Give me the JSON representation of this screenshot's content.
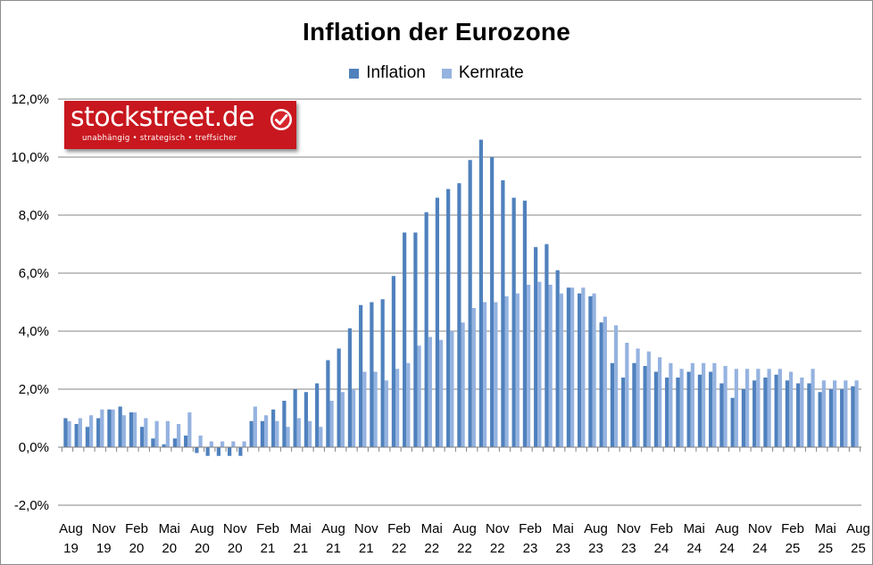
{
  "colors": {
    "inflation": "#4f81bd",
    "kernrate": "#95b3e0",
    "grid": "#868686",
    "logo_bg": "#c8171e"
  },
  "logo": {
    "text": "stockstreet.de",
    "tagline": "unabhängig • strategisch • treffsicher",
    "icon": "checkmark-badge-icon"
  },
  "chart_data": {
    "type": "bar",
    "title": "Inflation der Eurozone",
    "xlabel": "",
    "ylabel": "",
    "ylim": [
      -2,
      12
    ],
    "yticks": [
      "-2,0%",
      "0,0%",
      "2,0%",
      "4,0%",
      "6,0%",
      "8,0%",
      "10,0%",
      "12,0%"
    ],
    "grid": true,
    "legend_position": "top-center",
    "xtick_labels": [
      [
        "Aug",
        "19"
      ],
      [
        "Nov",
        "19"
      ],
      [
        "Feb",
        "20"
      ],
      [
        "Mai",
        "20"
      ],
      [
        "Aug",
        "20"
      ],
      [
        "Nov",
        "20"
      ],
      [
        "Feb",
        "21"
      ],
      [
        "Mai",
        "21"
      ],
      [
        "Aug",
        "21"
      ],
      [
        "Nov",
        "21"
      ],
      [
        "Feb",
        "22"
      ],
      [
        "Mai",
        "22"
      ],
      [
        "Aug",
        "22"
      ],
      [
        "Nov",
        "22"
      ],
      [
        "Feb",
        "23"
      ],
      [
        "Mai",
        "23"
      ],
      [
        "Aug",
        "23"
      ],
      [
        "Nov",
        "23"
      ],
      [
        "Feb",
        "24"
      ],
      [
        "Mai",
        "24"
      ],
      [
        "Aug",
        "24"
      ],
      [
        "Nov",
        "24"
      ],
      [
        "Feb",
        "25"
      ],
      [
        "Mai",
        "25"
      ],
      [
        "Aug",
        "25"
      ]
    ],
    "categories": [
      "2019-08",
      "2019-09",
      "2019-10",
      "2019-11",
      "2019-12",
      "2020-01",
      "2020-02",
      "2020-03",
      "2020-04",
      "2020-05",
      "2020-06",
      "2020-07",
      "2020-08",
      "2020-09",
      "2020-10",
      "2020-11",
      "2020-12",
      "2021-01",
      "2021-02",
      "2021-03",
      "2021-04",
      "2021-05",
      "2021-06",
      "2021-07",
      "2021-08",
      "2021-09",
      "2021-10",
      "2021-11",
      "2021-12",
      "2022-01",
      "2022-02",
      "2022-03",
      "2022-04",
      "2022-05",
      "2022-06",
      "2022-07",
      "2022-08",
      "2022-09",
      "2022-10",
      "2022-11",
      "2022-12",
      "2023-01",
      "2023-02",
      "2023-03",
      "2023-04",
      "2023-05",
      "2023-06",
      "2023-07",
      "2023-08",
      "2023-09",
      "2023-10",
      "2023-11",
      "2023-12",
      "2024-01",
      "2024-02",
      "2024-03",
      "2024-04",
      "2024-05",
      "2024-06",
      "2024-07",
      "2024-08",
      "2024-09",
      "2024-10",
      "2024-11",
      "2024-12",
      "2025-01",
      "2025-02",
      "2025-03",
      "2025-04",
      "2025-05",
      "2025-06",
      "2025-07",
      "2025-08"
    ],
    "series": [
      {
        "name": "Inflation",
        "values": [
          1.0,
          0.8,
          0.7,
          1.0,
          1.3,
          1.4,
          1.2,
          0.7,
          0.3,
          0.1,
          0.3,
          0.4,
          -0.2,
          -0.3,
          -0.3,
          -0.3,
          -0.3,
          0.9,
          0.9,
          1.3,
          1.6,
          2.0,
          1.9,
          2.2,
          3.0,
          3.4,
          4.1,
          4.9,
          5.0,
          5.1,
          5.9,
          7.4,
          7.4,
          8.1,
          8.6,
          8.9,
          9.1,
          9.9,
          10.6,
          10.0,
          9.2,
          8.6,
          8.5,
          6.9,
          7.0,
          6.1,
          5.5,
          5.3,
          5.2,
          4.3,
          2.9,
          2.4,
          2.9,
          2.8,
          2.6,
          2.4,
          2.4,
          2.6,
          2.5,
          2.6,
          2.2,
          1.7,
          2.0,
          2.3,
          2.4,
          2.5,
          2.3,
          2.2,
          2.2,
          1.9,
          2.0,
          2.0,
          2.1
        ]
      },
      {
        "name": "Kernrate",
        "values": [
          0.9,
          1.0,
          1.1,
          1.3,
          1.3,
          1.1,
          1.2,
          1.0,
          0.9,
          0.9,
          0.8,
          1.2,
          0.4,
          0.2,
          0.2,
          0.2,
          0.2,
          1.4,
          1.1,
          0.9,
          0.7,
          1.0,
          0.9,
          0.7,
          1.6,
          1.9,
          2.0,
          2.6,
          2.6,
          2.3,
          2.7,
          2.9,
          3.5,
          3.8,
          3.7,
          4.0,
          4.3,
          4.8,
          5.0,
          5.0,
          5.2,
          5.3,
          5.6,
          5.7,
          5.6,
          5.3,
          5.5,
          5.5,
          5.3,
          4.5,
          4.2,
          3.6,
          3.4,
          3.3,
          3.1,
          2.9,
          2.7,
          2.9,
          2.9,
          2.9,
          2.8,
          2.7,
          2.7,
          2.7,
          2.7,
          2.7,
          2.6,
          2.4,
          2.7,
          2.3,
          2.3,
          2.3,
          2.3
        ]
      }
    ]
  }
}
